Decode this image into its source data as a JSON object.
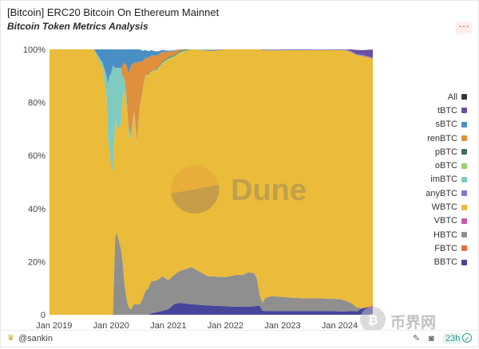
{
  "header": {
    "title": "[Bitcoin] ERC20 Bitcoin On Ethereum Mainnet",
    "subtitle": "Bitcoin Token Metrics Analysis",
    "more_icon": "more-dots-icon"
  },
  "watermark": {
    "dune_text": "Dune",
    "site_text": "币界网"
  },
  "footer": {
    "author": "@sankin",
    "refresh": "23h"
  },
  "colors": {
    "WBTC": "#ebbb3a",
    "HBTC": "#8f8f8f",
    "BBTC": "#45459a",
    "imBTC": "#7fcbbf",
    "renBTC": "#e08f3c",
    "sBTC": "#4a8fc4",
    "tBTC": "#6b4ea0",
    "oBTC": "#9ccf6e",
    "pBTC": "#3d6e62",
    "anyBTC": "#7a7ad0",
    "VBTC": "#c45bb0",
    "FBTC": "#e86a4a",
    "All": "#333333"
  },
  "chart_data": {
    "type": "area",
    "stacked": true,
    "normalized": true,
    "xlabel": "",
    "ylabel": "",
    "ylim": [
      0,
      100
    ],
    "y_ticks": [
      "0",
      "20%",
      "40%",
      "60%",
      "80%",
      "100%"
    ],
    "x_ticks": [
      {
        "label": "Jan 2019",
        "x": 2019.0
      },
      {
        "label": "Jan 2020",
        "x": 2020.0
      },
      {
        "label": "Jan 2021",
        "x": 2021.0
      },
      {
        "label": "Jan 2022",
        "x": 2022.0
      },
      {
        "label": "Jan 2023",
        "x": 2023.0
      },
      {
        "label": "Jan 2024",
        "x": 2024.0
      }
    ],
    "xlim": [
      2018.92,
      2024.58
    ],
    "legend": [
      "All",
      "tBTC",
      "sBTC",
      "renBTC",
      "pBTC",
      "oBTC",
      "imBTC",
      "anyBTC",
      "WBTC",
      "VBTC",
      "HBTC",
      "FBTC",
      "BBTC"
    ],
    "legend_position": "right",
    "x": [
      2018.92,
      2019.7,
      2019.85,
      2019.92,
      2019.94,
      2019.97,
      2020.0,
      2020.03,
      2020.07,
      2020.1,
      2020.13,
      2020.17,
      2020.2,
      2020.23,
      2020.27,
      2020.3,
      2020.35,
      2020.4,
      2020.45,
      2020.5,
      2020.55,
      2020.6,
      2020.65,
      2020.7,
      2020.8,
      2020.9,
      2021.0,
      2021.1,
      2021.2,
      2021.3,
      2021.4,
      2021.5,
      2021.6,
      2021.7,
      2021.8,
      2021.9,
      2022.0,
      2022.1,
      2022.2,
      2022.3,
      2022.4,
      2022.5,
      2022.55,
      2022.6,
      2022.65,
      2022.7,
      2022.8,
      2022.9,
      2023.0,
      2023.2,
      2023.4,
      2023.6,
      2023.8,
      2024.0,
      2024.1,
      2024.2,
      2024.3,
      2024.4,
      2024.58
    ],
    "series": [
      {
        "name": "BBTC",
        "values": [
          0,
          0,
          0,
          0,
          0,
          0,
          0,
          0,
          0,
          0,
          0,
          0,
          0,
          0,
          0,
          0,
          0,
          0,
          0,
          0,
          0,
          0,
          0,
          0.5,
          1,
          1.5,
          2,
          4,
          4.5,
          4.2,
          4,
          3.8,
          3.6,
          3.5,
          3.4,
          3.3,
          3.2,
          3.1,
          3.1,
          3,
          3,
          3.2,
          3.3,
          3.4,
          1.5,
          1.4,
          1.4,
          1.4,
          1.4,
          1.4,
          1.4,
          1.4,
          1.4,
          1.3,
          1.3,
          1.4,
          1.3,
          2.5,
          3
        ]
      },
      {
        "name": "FBTC",
        "values": [
          0,
          0,
          0,
          0,
          0,
          0,
          0,
          0,
          0,
          0,
          0,
          0,
          0,
          0,
          0,
          0,
          0,
          0,
          0,
          0,
          0,
          0,
          0,
          0,
          0,
          0,
          0,
          0,
          0,
          0,
          0,
          0,
          0,
          0,
          0,
          0,
          0,
          0,
          0,
          0,
          0,
          0,
          0,
          0,
          0,
          0,
          0,
          0,
          0,
          0,
          0,
          0,
          0,
          0,
          0,
          0,
          0,
          0,
          0.5
        ]
      },
      {
        "name": "HBTC",
        "values": [
          0,
          0,
          0,
          0,
          0,
          0,
          0,
          0,
          29,
          31,
          28,
          25,
          20,
          12,
          6,
          3,
          2,
          4,
          4,
          4,
          6,
          9,
          10,
          12,
          12,
          13,
          11,
          11,
          12,
          13,
          14,
          13,
          12,
          11,
          11,
          11,
          11,
          11.5,
          12,
          12,
          13,
          12.5,
          10.5,
          4,
          3,
          5,
          5.6,
          5.5,
          5.3,
          5,
          4.8,
          4.8,
          4.7,
          4.6,
          4,
          3,
          1.5,
          0,
          0
        ]
      },
      {
        "name": "VBTC",
        "values": [
          0,
          0,
          0,
          0,
          0,
          0,
          0,
          0,
          0,
          0,
          0,
          0,
          0,
          0,
          0,
          0,
          0,
          0,
          0,
          0,
          0,
          0,
          0,
          0,
          0,
          0,
          0,
          0,
          0,
          0,
          0,
          0,
          0,
          0,
          0,
          0,
          0,
          0,
          0,
          0,
          0,
          0,
          0,
          0,
          0,
          0,
          0,
          0,
          0,
          0,
          0,
          0,
          0,
          0,
          0,
          0,
          0,
          0,
          0
        ]
      },
      {
        "name": "WBTC",
        "values": [
          100,
          100,
          93,
          82,
          67,
          62,
          56,
          54,
          44,
          40,
          42,
          47,
          62,
          72,
          73,
          66,
          64,
          72,
          60,
          74,
          78,
          81,
          80,
          79,
          79,
          80,
          83,
          82,
          82,
          82,
          82,
          83,
          84,
          85,
          85,
          85.5,
          86,
          85.7,
          85.3,
          85.4,
          84.4,
          84.6,
          86.5,
          92.8,
          95.2,
          93.2,
          92.6,
          92.7,
          93,
          93.3,
          93.5,
          93.6,
          93.7,
          93.8,
          94.4,
          94.5,
          95,
          95,
          93
        ]
      },
      {
        "name": "anyBTC",
        "values": [
          0,
          0,
          0,
          0,
          0,
          0,
          0,
          0,
          0,
          0,
          0,
          0,
          0,
          0,
          0,
          0,
          0,
          0,
          0,
          0,
          0,
          0,
          0,
          0,
          0,
          0,
          0,
          0,
          0,
          0,
          0,
          0,
          0.2,
          0.3,
          0.3,
          0.3,
          0.3,
          0.3,
          0.3,
          0.3,
          0.3,
          0.3,
          0.3,
          0.3,
          0.3,
          0.3,
          0.3,
          0.3,
          0.3,
          0.3,
          0.3,
          0.3,
          0.3,
          0.3,
          0.3,
          0.3,
          0.3,
          0.3,
          0.3
        ]
      },
      {
        "name": "imBTC",
        "values": [
          0,
          0,
          2,
          8,
          20,
          28,
          35,
          40,
          20,
          22,
          23,
          21,
          8,
          5,
          3,
          2,
          2,
          1,
          1,
          0.5,
          0.5,
          0.3,
          0.3,
          0.2,
          0.2,
          0.2,
          0.2,
          0,
          0,
          0,
          0,
          0,
          0,
          0,
          0,
          0,
          0,
          0,
          0,
          0,
          0,
          0,
          0,
          0,
          0,
          0,
          0,
          0,
          0,
          0,
          0,
          0,
          0,
          0,
          0,
          0,
          0,
          0,
          0
        ]
      },
      {
        "name": "oBTC",
        "values": [
          0,
          0,
          0,
          0,
          0,
          0,
          0,
          0,
          0,
          0,
          0,
          0,
          0,
          0,
          0,
          0,
          0,
          0,
          0,
          0,
          0,
          0,
          0,
          0,
          0.3,
          0.5,
          0.5,
          0.5,
          0.5,
          0.5,
          0.5,
          0.4,
          0.4,
          0.3,
          0.3,
          0.3,
          0.3,
          0.3,
          0.3,
          0.3,
          0.3,
          0.3,
          0.3,
          0.3,
          0.2,
          0.2,
          0.2,
          0.2,
          0.1,
          0.1,
          0.1,
          0,
          0,
          0,
          0,
          0,
          0,
          0,
          0
        ]
      },
      {
        "name": "pBTC",
        "values": [
          0,
          0,
          0,
          0,
          0,
          0,
          0,
          0,
          0,
          0,
          0,
          0,
          0,
          0,
          0,
          0,
          0,
          0,
          0,
          0,
          0,
          0,
          0,
          0,
          0.2,
          0.3,
          0.3,
          0.3,
          0.3,
          0.3,
          0.2,
          0.2,
          0.2,
          0.2,
          0.2,
          0.1,
          0.1,
          0.1,
          0.1,
          0.1,
          0.1,
          0.1,
          0.1,
          0.1,
          0.1,
          0.1,
          0,
          0,
          0,
          0,
          0,
          0,
          0,
          0,
          0,
          0,
          0,
          0,
          0
        ]
      },
      {
        "name": "renBTC",
        "values": [
          0,
          0,
          0,
          0,
          0,
          0,
          0,
          0,
          0,
          0,
          0,
          0,
          4,
          6,
          12,
          20,
          26,
          18,
          30,
          17,
          11,
          6.5,
          6.5,
          6,
          5,
          3.5,
          2,
          1.5,
          1,
          1,
          0.8,
          0.7,
          0.7,
          0.7,
          0.7,
          0.6,
          0.6,
          0.6,
          0.6,
          0.6,
          0.6,
          0.6,
          0.6,
          0.5,
          0.4,
          0.4,
          0.4,
          0.3,
          0.3,
          0.2,
          0.2,
          0.2,
          0.2,
          0.2,
          0.1,
          0.1,
          0.1,
          0.1,
          0.1
        ]
      },
      {
        "name": "sBTC",
        "values": [
          0,
          0,
          5,
          10,
          13,
          10,
          9,
          6,
          7,
          7,
          7,
          7,
          6,
          5,
          6,
          9,
          6,
          5,
          5,
          4.5,
          4,
          3,
          2.5,
          2,
          1.5,
          0.8,
          0.5,
          0.3,
          0.3,
          0.3,
          0.3,
          0.3,
          0.2,
          0.2,
          0.2,
          0.2,
          0.2,
          0.2,
          0.2,
          0.2,
          0.2,
          0.2,
          0.1,
          0.1,
          0.1,
          0.1,
          0.1,
          0.1,
          0.1,
          0.1,
          0.1,
          0,
          0,
          0,
          0,
          0,
          0,
          0,
          0
        ]
      },
      {
        "name": "tBTC",
        "values": [
          0,
          0,
          0,
          0,
          0,
          0,
          0,
          0,
          0,
          0,
          0,
          0,
          0,
          0,
          0,
          0,
          0,
          0,
          0,
          0,
          0,
          0,
          0,
          0,
          0,
          0,
          0,
          0,
          0.1,
          0.3,
          0.5,
          0.5,
          0.5,
          0.5,
          0.5,
          0.5,
          0.5,
          0.6,
          0.6,
          0.6,
          0.6,
          0.6,
          0.6,
          0.7,
          0.8,
          1,
          1,
          1,
          1.2,
          1.3,
          1.4,
          1.5,
          1.5,
          1.5,
          1.5,
          1.5,
          1.6,
          1.8,
          3
        ]
      }
    ]
  }
}
